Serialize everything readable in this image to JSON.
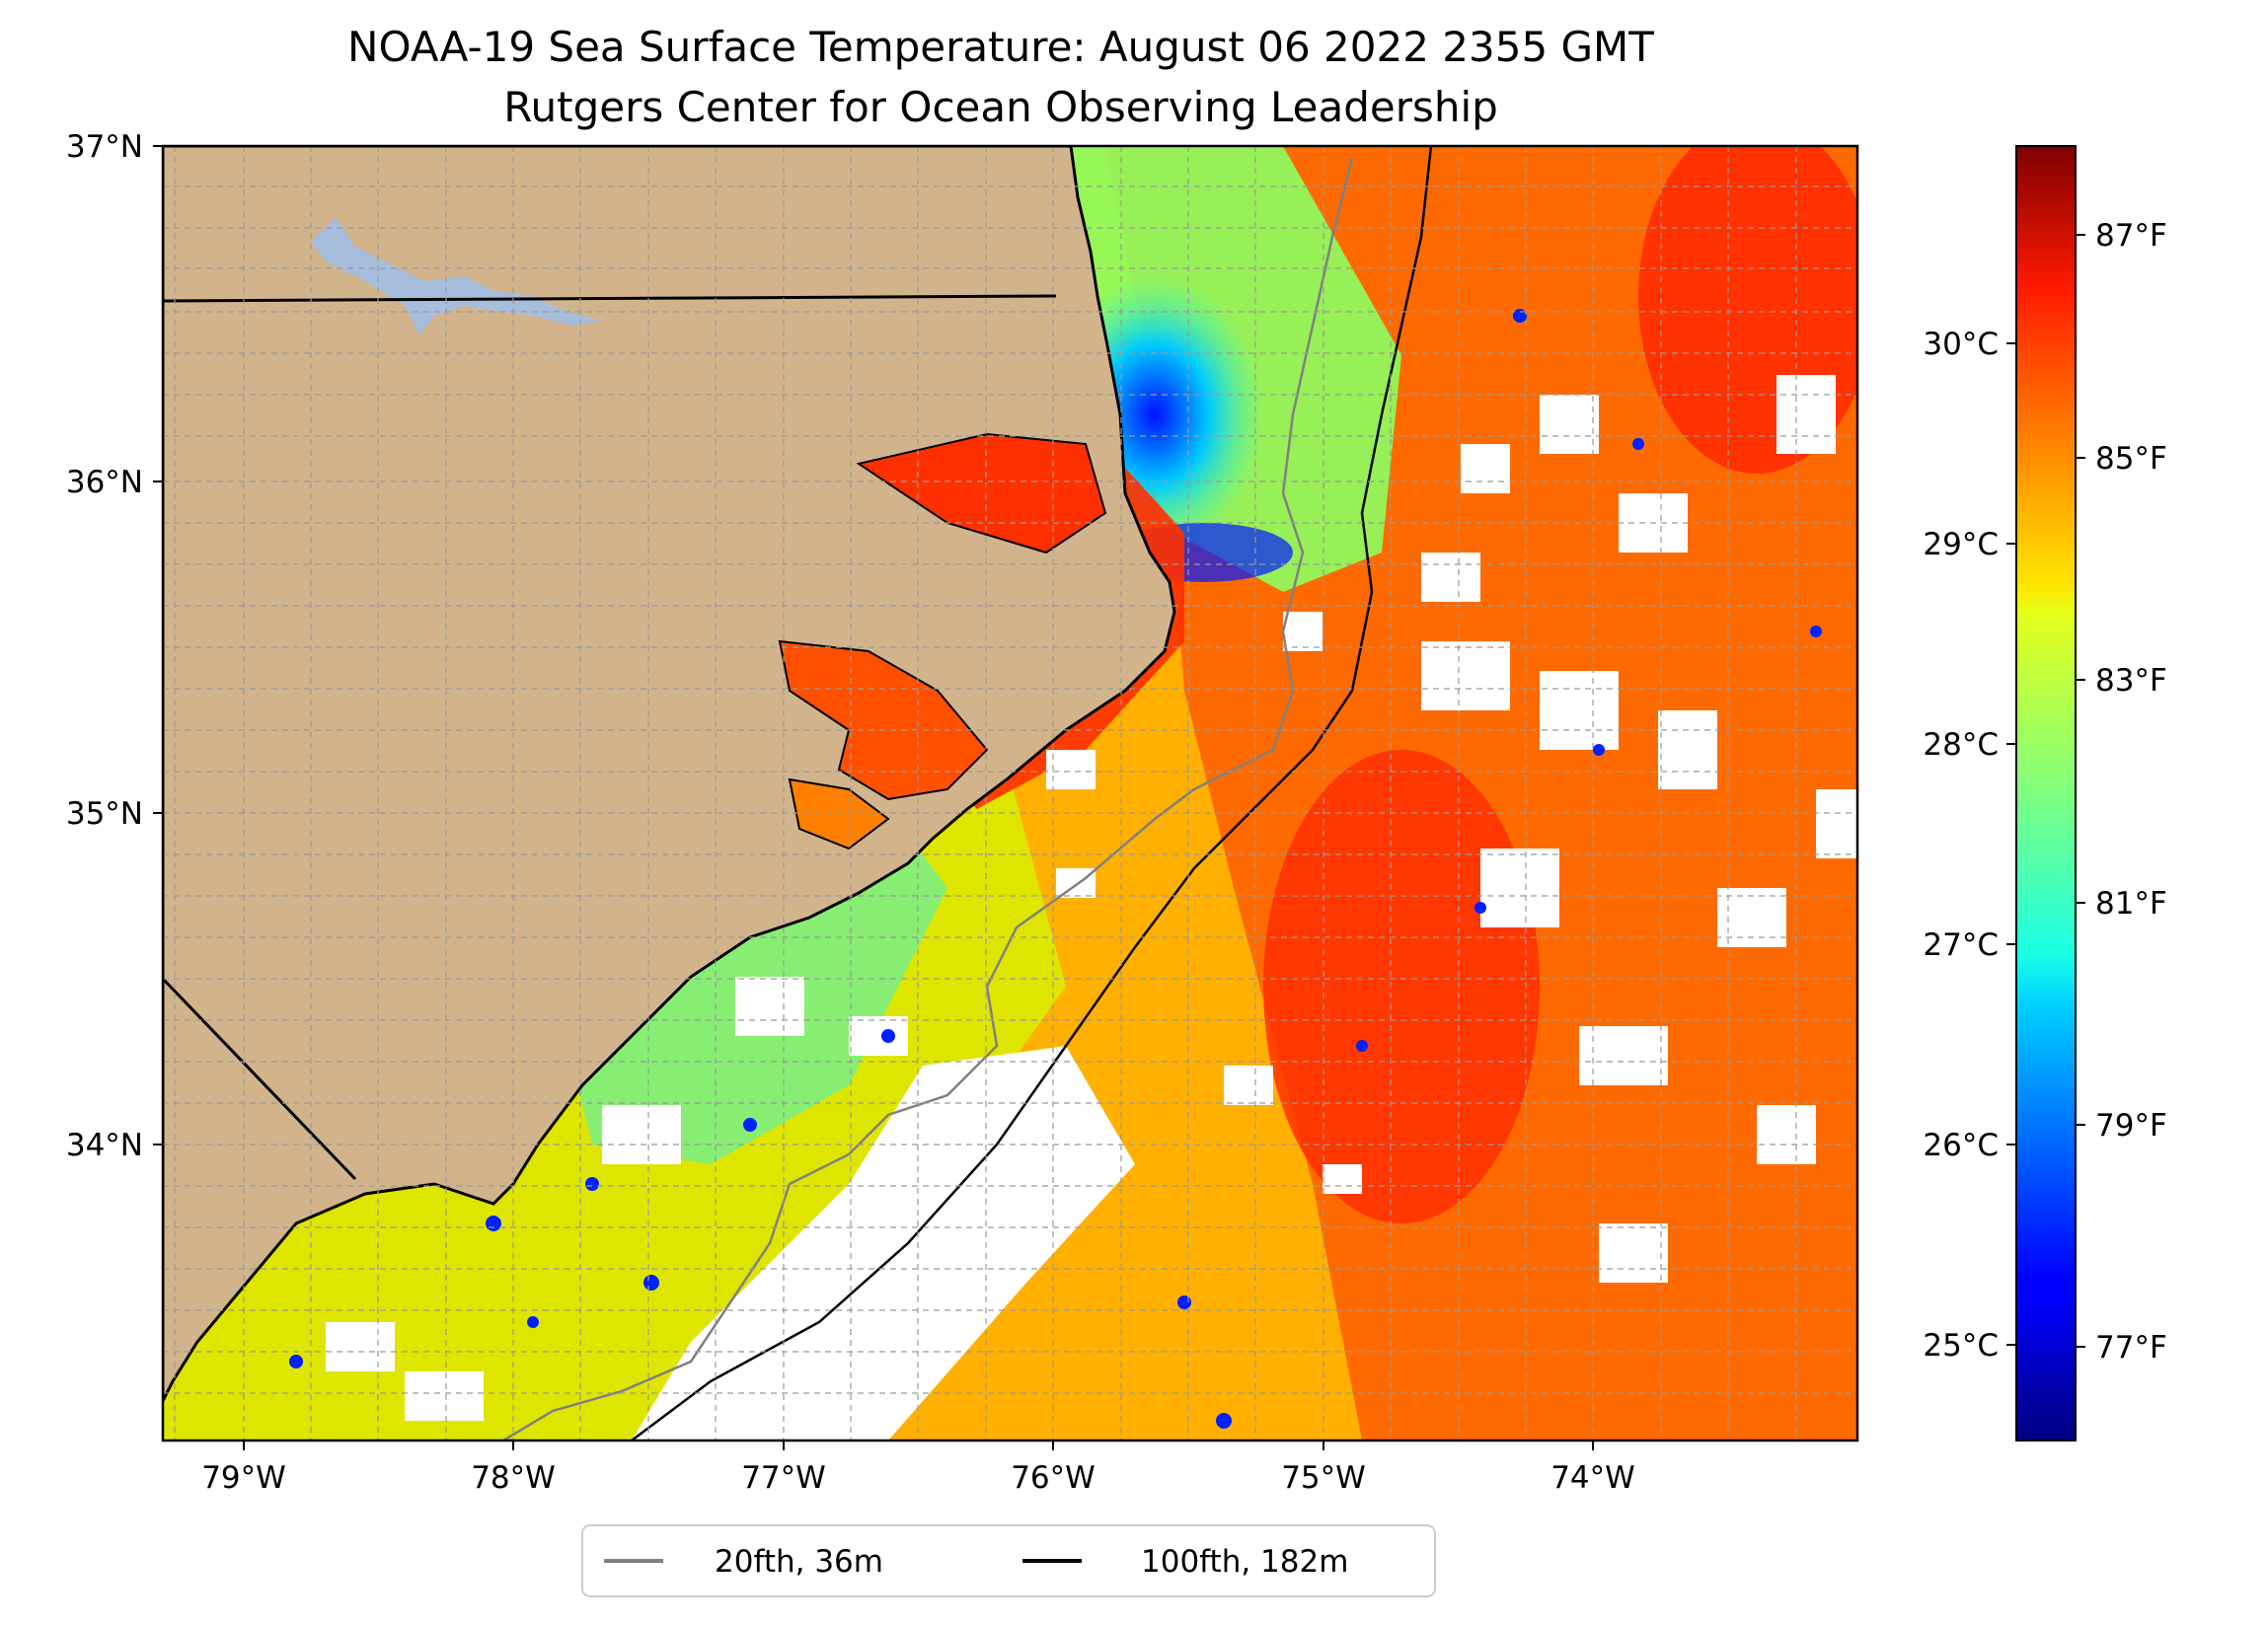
{
  "title": {
    "line1": "NOAA-19 Sea Surface Temperature: August 06 2022 2355 GMT",
    "line2": "Rutgers Center for Ocean Observing Leadership"
  },
  "map": {
    "lat_range": [
      33.1,
      37.0
    ],
    "lon_range": [
      -79.3,
      -73.1
    ],
    "lat_labels": [
      "37°N",
      "36°N",
      "35°N",
      "34°N"
    ],
    "lon_labels": [
      "79°W",
      "78°W",
      "77°W",
      "76°W",
      "75°W",
      "74°W"
    ],
    "land_color": "#D2B48C",
    "lake_color": "#A6BDDB",
    "grid": true
  },
  "colorbar": {
    "colormap": "jet",
    "celsius_labels": [
      "30°C",
      "29°C",
      "28°C",
      "27°C",
      "26°C",
      "25°C"
    ],
    "fahrenheit_labels": [
      "87°F",
      "85°F",
      "83°F",
      "81°F",
      "79°F",
      "77°F"
    ],
    "range_celsius": [
      24.6,
      31.0
    ]
  },
  "legend": {
    "items": [
      {
        "label": "20fth, 36m",
        "color": "#808080"
      },
      {
        "label": "100fth, 182m",
        "color": "#000000"
      }
    ]
  }
}
